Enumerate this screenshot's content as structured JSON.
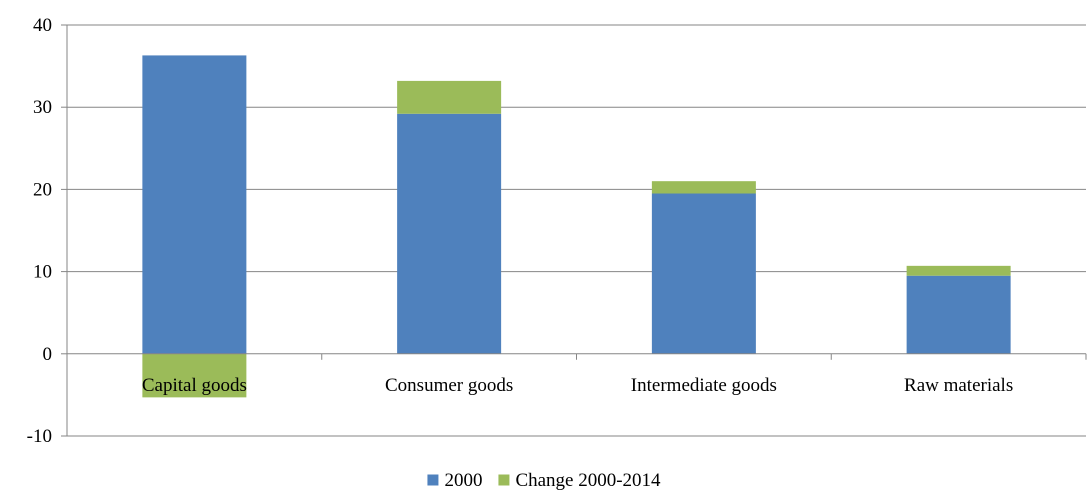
{
  "chart_data": {
    "type": "bar",
    "stacked": true,
    "categories": [
      "Capital goods",
      "Consumer goods",
      "Intermediate goods",
      "Raw materials"
    ],
    "series": [
      {
        "name": "2000",
        "color": "#4F81BD",
        "values": [
          36.3,
          29.2,
          19.5,
          9.5
        ]
      },
      {
        "name": "Change 2000-2014",
        "color": "#9BBB59",
        "values": [
          -5.3,
          4.0,
          1.5,
          1.2
        ]
      }
    ],
    "ylim": [
      -10,
      40
    ],
    "yticks": [
      -10,
      0,
      10,
      20,
      30,
      40
    ],
    "grid": true,
    "legend": "bottom-center"
  }
}
